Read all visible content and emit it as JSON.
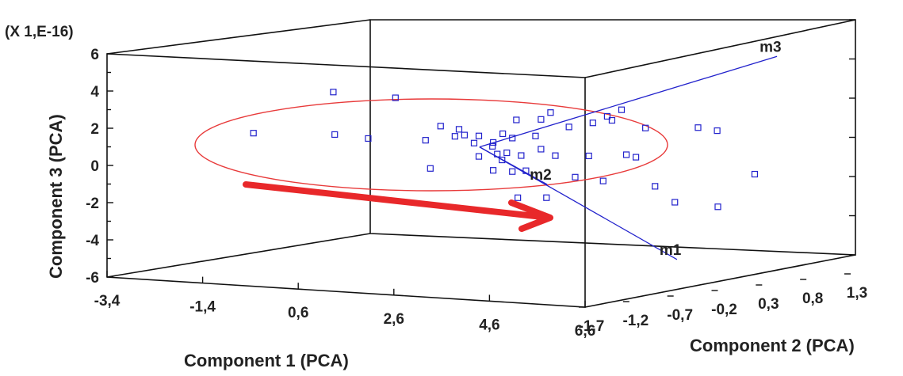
{
  "chart_data": {
    "type": "scatter",
    "projection": "3d-box",
    "title": "",
    "z_scale_label": "(X 1,E-16)",
    "xlabel": "Component 1 (PCA)",
    "ylabel": "Component 2 (PCA)",
    "zlabel": "Component 3 (PCA)",
    "x_ticks": [
      "-3,4",
      "-1,4",
      "0,6",
      "2,6",
      "4,6",
      "6,6"
    ],
    "y_ticks": [
      "-1,7",
      "-1,2",
      "-0,7",
      "-0,2",
      "0,3",
      "0,8",
      "1,3"
    ],
    "z_ticks": [
      "6",
      "4",
      "2",
      "0",
      "-2",
      "-4",
      "-6"
    ],
    "xlim": [
      -3.4,
      6.6
    ],
    "ylim": [
      -1.7,
      1.3
    ],
    "zlim": [
      -6,
      6
    ],
    "colors": {
      "points": "#2222cc",
      "vectors": "#2222cc",
      "ellipse": "#e83a3a",
      "arrow": "#e8282a",
      "box": "#111111"
    },
    "vectors": [
      {
        "name": "m1",
        "x": 6.3,
        "y": -0.5,
        "z": -4.2
      },
      {
        "name": "m2",
        "x": 3.4,
        "y": -0.4,
        "z": -0.7
      },
      {
        "name": "m3",
        "x": 5.8,
        "y": 0.9,
        "z": 5.8
      }
    ],
    "origin": {
      "x": 1.8,
      "y": -0.3,
      "z": 1.0
    },
    "points": [
      {
        "x": -3.3,
        "y": -0.1,
        "z": 0.8
      },
      {
        "x": -1.6,
        "y": -0.1,
        "z": 1.0
      },
      {
        "x": -0.9,
        "y": -0.1,
        "z": 0.9
      },
      {
        "x": -2.0,
        "y": 0.1,
        "z": 3.1
      },
      {
        "x": -0.7,
        "y": 0.1,
        "z": 3.0
      },
      {
        "x": 0.3,
        "y": -0.1,
        "z": 1.0
      },
      {
        "x": 0.4,
        "y": -0.1,
        "z": -0.5
      },
      {
        "x": 0.8,
        "y": -0.2,
        "z": 1.9
      },
      {
        "x": 1.0,
        "y": -0.1,
        "z": 1.7
      },
      {
        "x": 1.3,
        "y": -0.2,
        "z": 1.5
      },
      {
        "x": 1.1,
        "y": -0.2,
        "z": 1.4
      },
      {
        "x": 1.6,
        "y": -0.2,
        "z": 1.5
      },
      {
        "x": 1.5,
        "y": -0.2,
        "z": 1.1
      },
      {
        "x": 1.9,
        "y": -0.2,
        "z": 1.2
      },
      {
        "x": 2.1,
        "y": -0.2,
        "z": 1.7
      },
      {
        "x": 2.3,
        "y": -0.2,
        "z": 1.5
      },
      {
        "x": 2.2,
        "y": -0.1,
        "z": 2.4
      },
      {
        "x": 1.8,
        "y": -0.1,
        "z": 0.5
      },
      {
        "x": 1.9,
        "y": -0.1,
        "z": 0.2
      },
      {
        "x": 1.6,
        "y": -0.2,
        "z": 0.4
      },
      {
        "x": 1.7,
        "y": -0.1,
        "z": 0.9
      },
      {
        "x": 2.0,
        "y": -0.1,
        "z": 0.6
      },
      {
        "x": 2.3,
        "y": -0.1,
        "z": 0.5
      },
      {
        "x": 2.4,
        "y": -0.1,
        "z": -0.3
      },
      {
        "x": 2.3,
        "y": -0.2,
        "z": -0.3
      },
      {
        "x": 1.9,
        "y": -0.2,
        "z": -0.3
      },
      {
        "x": 2.6,
        "y": -0.1,
        "z": 1.6
      },
      {
        "x": 2.9,
        "y": -0.2,
        "z": 2.6
      },
      {
        "x": 3.1,
        "y": -0.2,
        "z": 3.0
      },
      {
        "x": 3.3,
        "y": -0.1,
        "z": 2.2
      },
      {
        "x": 2.9,
        "y": -0.2,
        "z": 1.0
      },
      {
        "x": 3.2,
        "y": -0.2,
        "z": 0.7
      },
      {
        "x": 3.8,
        "y": -0.1,
        "z": 2.5
      },
      {
        "x": 4.1,
        "y": -0.1,
        "z": 2.9
      },
      {
        "x": 4.2,
        "y": -0.1,
        "z": 2.7
      },
      {
        "x": 4.4,
        "y": -0.1,
        "z": 3.3
      },
      {
        "x": 3.9,
        "y": -0.2,
        "z": 0.8
      },
      {
        "x": 4.5,
        "y": -0.1,
        "z": 0.9
      },
      {
        "x": 4.7,
        "y": -0.1,
        "z": 0.8
      },
      {
        "x": 4.9,
        "y": -0.1,
        "z": 2.4
      },
      {
        "x": 3.8,
        "y": -0.3,
        "z": -0.3
      },
      {
        "x": 4.2,
        "y": -0.2,
        "z": -0.5
      },
      {
        "x": 3.2,
        "y": -0.3,
        "z": -1.5
      },
      {
        "x": 2.6,
        "y": -0.3,
        "z": -1.6
      },
      {
        "x": 5.1,
        "y": -0.1,
        "z": -0.7
      },
      {
        "x": 6.0,
        "y": -0.1,
        "z": 2.6
      },
      {
        "x": 6.4,
        "y": -0.1,
        "z": 2.5
      },
      {
        "x": 5.7,
        "y": -0.2,
        "z": -1.4
      },
      {
        "x": 6.6,
        "y": -0.2,
        "z": -1.5
      },
      {
        "x": 7.0,
        "y": 0.0,
        "z": 0.2
      }
    ]
  }
}
